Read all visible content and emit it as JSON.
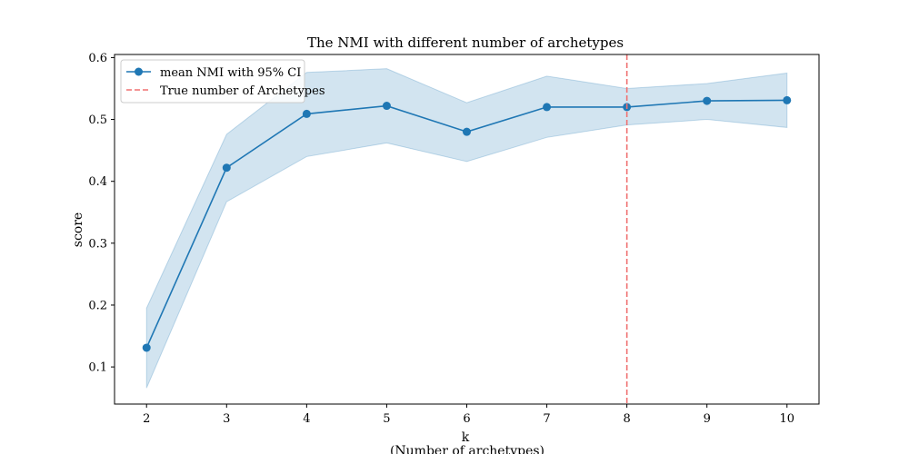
{
  "chart_data": {
    "type": "line",
    "title": "The NMI with different number of archetypes",
    "xlabel": "k",
    "xlabel_sub": "(Number of archetypes)",
    "ylabel": "score",
    "xlim": [
      1.6,
      10.4
    ],
    "ylim": [
      0.04,
      0.605
    ],
    "x_ticks": [
      2,
      3,
      4,
      5,
      6,
      7,
      8,
      9,
      10
    ],
    "y_ticks": [
      0.1,
      0.2,
      0.3,
      0.4,
      0.5,
      0.6
    ],
    "y_tick_labels": [
      "0.1",
      "0.2",
      "0.3",
      "0.4",
      "0.5",
      "0.6"
    ],
    "grid": false,
    "legend_position": "top-left",
    "series": [
      {
        "name": "mean NMI with 95% CI",
        "color": "#1f77b4",
        "band_color": "#1f77b4",
        "x": [
          2,
          3,
          4,
          5,
          6,
          7,
          8,
          9,
          10
        ],
        "values": [
          0.131,
          0.422,
          0.509,
          0.522,
          0.48,
          0.52,
          0.52,
          0.53,
          0.531
        ],
        "ci_lower": [
          0.066,
          0.367,
          0.44,
          0.462,
          0.432,
          0.471,
          0.491,
          0.5,
          0.487
        ],
        "ci_upper": [
          0.195,
          0.476,
          0.576,
          0.582,
          0.527,
          0.57,
          0.55,
          0.558,
          0.575
        ]
      }
    ],
    "reference_line": {
      "name": "True number of Archetypes",
      "x": 8,
      "color": "#f07070"
    }
  }
}
